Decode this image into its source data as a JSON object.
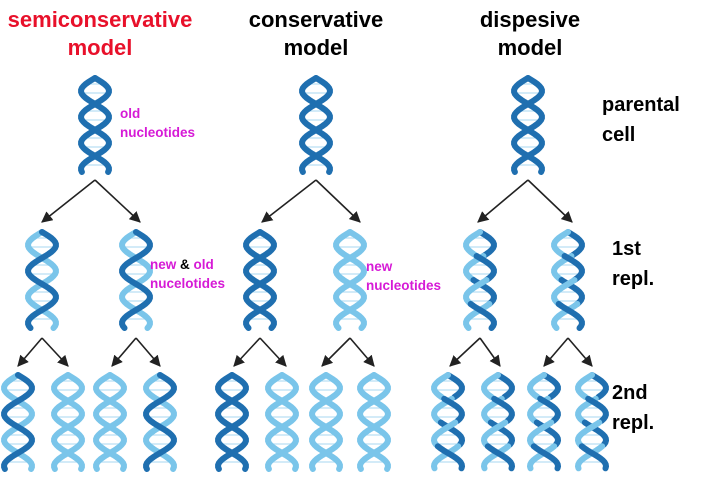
{
  "colors": {
    "title_highlight": "#e8102a",
    "annotation": "#d61ad6",
    "dark_strand": "#1f6fb0",
    "light_strand": "#7ac5ea",
    "arrow": "#222222"
  },
  "titles": {
    "semiconservative": [
      "semiconservative",
      "model"
    ],
    "conservative": [
      "conservative",
      "model"
    ],
    "dispersive": [
      "dispesive",
      "model"
    ]
  },
  "row_labels": {
    "parental": [
      "parental",
      "cell"
    ],
    "first": [
      "1st",
      "repl."
    ],
    "second": [
      "2nd",
      "repl."
    ]
  },
  "annotations": {
    "old_nucleotides": [
      "old",
      "nucleotides"
    ],
    "new_and_old": {
      "new": "new",
      "amp": "&",
      "old": "old",
      "line2": "nucelotides"
    },
    "new_nucleotides": [
      "new",
      "nucleotides"
    ]
  }
}
